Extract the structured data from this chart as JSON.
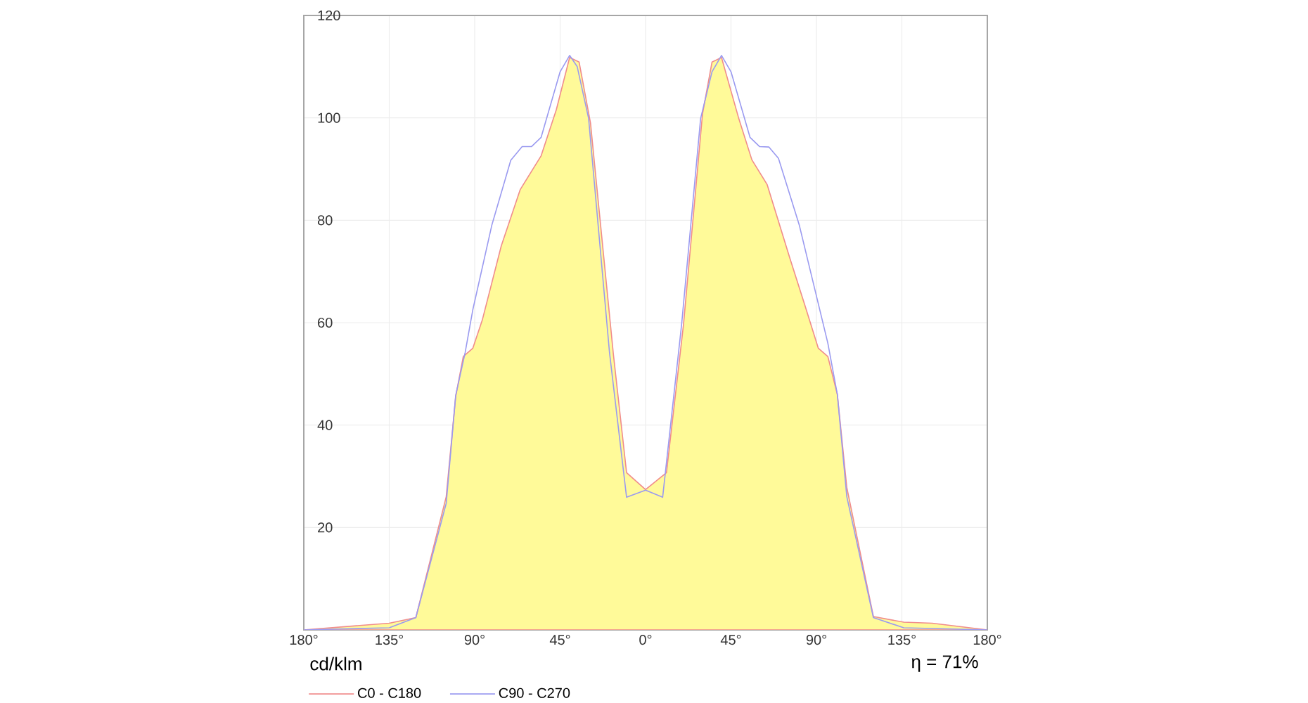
{
  "chart_data": {
    "type": "area",
    "x": [
      -180,
      -135,
      -121,
      -105,
      -100,
      -96,
      -91,
      -86,
      -76,
      -66,
      -55,
      -47,
      -40,
      -35,
      -29,
      -17,
      -10,
      0,
      11,
      20,
      30,
      35,
      40,
      49,
      56,
      64,
      76,
      84,
      91,
      96,
      101,
      106,
      120,
      136,
      151,
      180
    ],
    "series": [
      {
        "name": "C0 - C180",
        "color": "#f08c8c",
        "values": [
          0,
          1.3,
          2.4,
          26,
          45.6,
          53.4,
          55,
          60.5,
          75,
          86,
          92.6,
          101.6,
          111.8,
          110.9,
          99,
          54,
          30.7,
          27.4,
          30.7,
          59.7,
          100.8,
          110.9,
          111.8,
          100,
          91.8,
          87,
          72.6,
          63.3,
          55,
          53.4,
          46,
          27.8,
          2.6,
          1.5,
          1.3,
          0
        ]
      },
      {
        "name": "C90 - C270",
        "type": "line",
        "color": "#9a9af0",
        "x": [
          -180,
          -135,
          -121,
          -105,
          -100,
          -95,
          -91,
          -81,
          -71,
          -65,
          -60,
          -55,
          -45,
          -40,
          -36,
          -30,
          -19,
          -10,
          0,
          9,
          19,
          29,
          35,
          40,
          45,
          55,
          60,
          65,
          70,
          81,
          96,
          101,
          106,
          120,
          136,
          180
        ],
        "values": [
          0,
          0.4,
          2.4,
          24.7,
          45.8,
          54.2,
          62.5,
          79,
          91.7,
          94.4,
          94.4,
          96.2,
          109,
          112.2,
          110,
          99.9,
          54.2,
          25.9,
          27.3,
          25.9,
          59.7,
          99.9,
          109,
          112.2,
          109,
          96.2,
          94.4,
          94.3,
          92.1,
          79,
          56,
          46,
          26,
          2.4,
          0.4,
          0
        ]
      }
    ],
    "xlim": [
      -180,
      180
    ],
    "xticks": [
      {
        "value": -180,
        "label": "180°"
      },
      {
        "value": -135,
        "label": "135°"
      },
      {
        "value": -90,
        "label": "90°"
      },
      {
        "value": -45,
        "label": "45°"
      },
      {
        "value": 0,
        "label": "0°"
      },
      {
        "value": 45,
        "label": "45°"
      },
      {
        "value": 90,
        "label": "90°"
      },
      {
        "value": 135,
        "label": "135°"
      },
      {
        "value": 180,
        "label": "180°"
      }
    ],
    "ylim": [
      0,
      120
    ],
    "yticks": [
      20,
      40,
      60,
      80,
      100,
      120
    ],
    "grid": true,
    "legend": "bottom left",
    "annotations": [
      "cd/klm",
      "η = 71%"
    ]
  }
}
